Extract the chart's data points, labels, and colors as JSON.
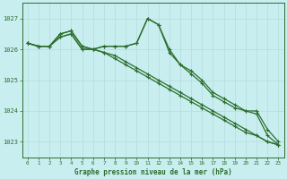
{
  "title": "Graphe pression niveau de la mer (hPa)",
  "background_color": "#c8eef0",
  "grid_color": "#b8dfe0",
  "line_color": "#2d6e2d",
  "xlim": [
    -0.5,
    23.5
  ],
  "ylim": [
    1022.5,
    1027.5
  ],
  "yticks": [
    1023,
    1024,
    1025,
    1026,
    1027
  ],
  "xticks": [
    0,
    1,
    2,
    3,
    4,
    5,
    6,
    7,
    8,
    9,
    10,
    11,
    12,
    13,
    14,
    15,
    16,
    17,
    18,
    19,
    20,
    21,
    22,
    23
  ],
  "series": [
    [
      1026.2,
      1026.1,
      1026.1,
      1026.5,
      1026.6,
      1026.1,
      1026.0,
      1026.1,
      1026.1,
      1026.1,
      1026.2,
      1027.0,
      1026.8,
      1025.9,
      1025.5,
      1025.3,
      1025.0,
      1024.6,
      1024.4,
      1024.2,
      1024.0,
      1023.9,
      1023.2,
      1022.9
    ],
    [
      1026.2,
      1026.1,
      1026.1,
      1026.5,
      1026.6,
      1026.1,
      1026.0,
      1026.1,
      1026.1,
      1026.1,
      1026.2,
      1027.0,
      1026.8,
      1026.0,
      1025.5,
      1025.2,
      1024.9,
      1024.5,
      1024.3,
      1024.1,
      1024.0,
      1024.0,
      1023.4,
      1023.0
    ],
    [
      1026.2,
      1026.1,
      1026.1,
      1026.4,
      1026.5,
      1026.0,
      1026.0,
      1025.9,
      1025.8,
      1025.6,
      1025.4,
      1025.2,
      1025.0,
      1024.8,
      1024.6,
      1024.4,
      1024.2,
      1024.0,
      1023.8,
      1023.6,
      1023.4,
      1023.2,
      1023.0,
      1022.9
    ],
    [
      1026.2,
      1026.1,
      1026.1,
      1026.4,
      1026.5,
      1026.0,
      1026.0,
      1025.9,
      1025.7,
      1025.5,
      1025.3,
      1025.1,
      1024.9,
      1024.7,
      1024.5,
      1024.3,
      1024.1,
      1023.9,
      1023.7,
      1023.5,
      1023.3,
      1023.2,
      1023.0,
      1022.9
    ]
  ],
  "marker": "+"
}
